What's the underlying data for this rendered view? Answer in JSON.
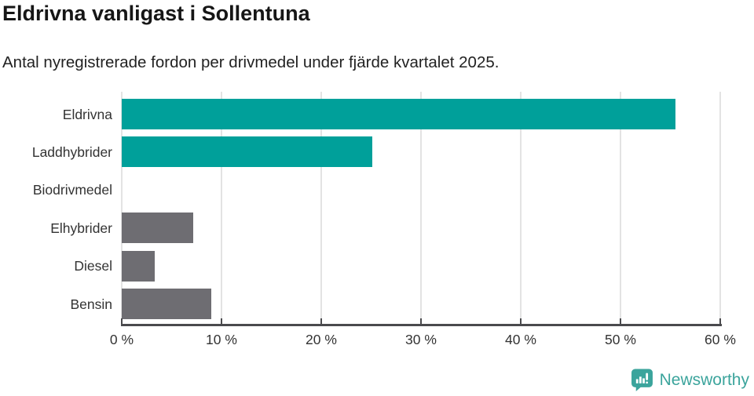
{
  "header": {
    "title": "Eldrivna vanligast i Sollentuna",
    "subtitle": "Antal nyregistrerade fordon per drivmedel under fjärde kvartalet 2025."
  },
  "chart_data": {
    "type": "bar",
    "orientation": "horizontal",
    "title": "Eldrivna vanligast i Sollentuna",
    "subtitle": "Antal nyregistrerade fordon per drivmedel under fjärde kvartalet 2025.",
    "categories": [
      "Eldrivna",
      "Laddhybrider",
      "Biodrivmedel",
      "Elhybrider",
      "Diesel",
      "Bensin"
    ],
    "values": [
      55.5,
      25.1,
      0,
      7.2,
      3.3,
      9.0
    ],
    "unit": "%",
    "xlabel": "",
    "ylabel": "",
    "xlim": [
      0,
      60
    ],
    "x_tick_values": [
      0,
      10,
      20,
      30,
      40,
      50,
      60
    ],
    "x_tick_labels": [
      "0 %",
      "10 %",
      "20 %",
      "30 %",
      "40 %",
      "50 %",
      "60 %"
    ],
    "grid": true,
    "legend": false,
    "bar_colors": [
      "#00a09a",
      "#00a09a",
      "#6e6d72",
      "#6e6d72",
      "#6e6d72",
      "#6e6d72"
    ]
  },
  "branding": {
    "logo_text": "Newsworthy",
    "logo_icon": "newsworthy-speech-bubble-chart-icon",
    "logo_color": "#3ba49c"
  },
  "colors": {
    "accent_teal": "#00a09a",
    "neutral_gray": "#6e6d72",
    "gridline": "#e3e3e3",
    "axis": "#4a4a4d",
    "text": "#333333",
    "title_text": "#161616"
  }
}
